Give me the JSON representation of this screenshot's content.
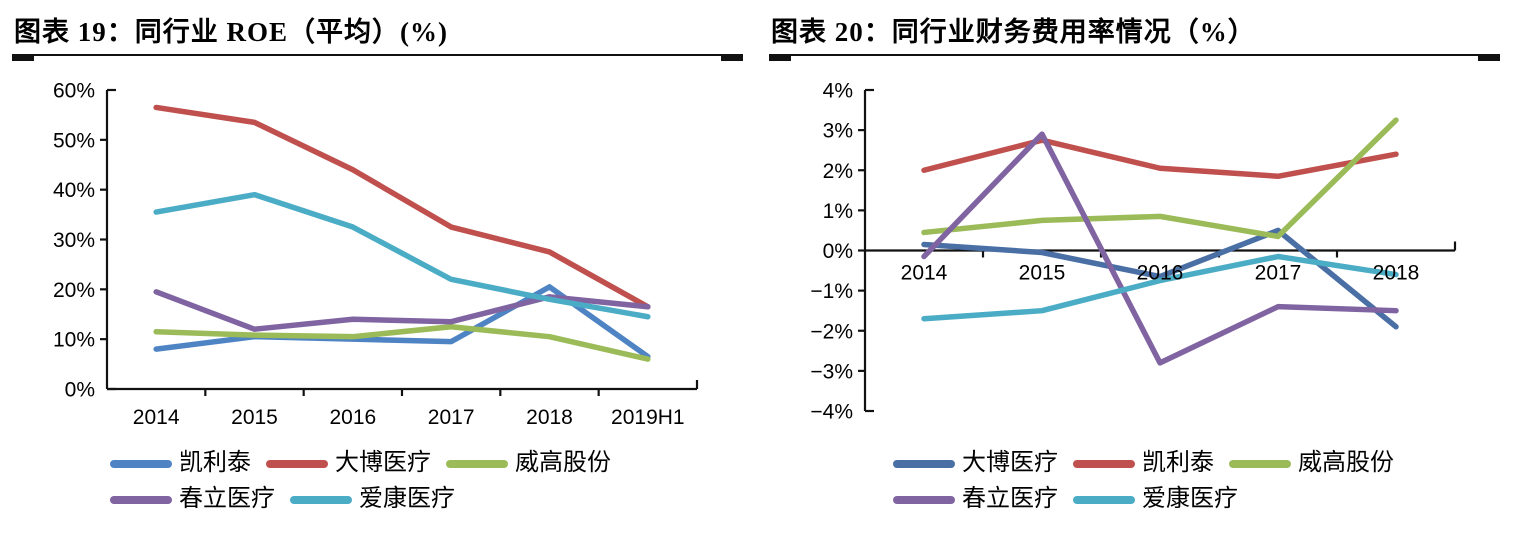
{
  "page": {
    "background": "#ffffff",
    "axis_color": "#111111"
  },
  "chart_data": [
    {
      "id": "roe",
      "type": "line",
      "title": "图表 19：同行业 ROE（平均）(%)",
      "categories": [
        "2014",
        "2015",
        "2016",
        "2017",
        "2018",
        "2019H1"
      ],
      "xlabel": "",
      "ylabel": "",
      "y_axis": {
        "min": 0,
        "max": 60,
        "tick_step": 10,
        "tick_labels": [
          "0%",
          "10%",
          "20%",
          "30%",
          "40%",
          "50%",
          "60%"
        ]
      },
      "grid": false,
      "legend_position": "bottom",
      "legend_rows": [
        [
          0,
          1,
          2
        ],
        [
          3,
          4
        ]
      ],
      "series": [
        {
          "name": "凯利泰",
          "color": "#4f84c4",
          "values": [
            8,
            10.5,
            10,
            9.5,
            20.5,
            6.5
          ]
        },
        {
          "name": "大博医疗",
          "color": "#c0504d",
          "values": [
            56.5,
            53.5,
            44,
            32.5,
            27.5,
            16.5
          ]
        },
        {
          "name": "威高股份",
          "color": "#9bbb59",
          "values": [
            11.5,
            10.8,
            10.5,
            12.5,
            10.5,
            6
          ]
        },
        {
          "name": "春立医疗",
          "color": "#8064a2",
          "values": [
            19.5,
            12,
            14,
            13.5,
            18.5,
            16.5
          ]
        },
        {
          "name": "爱康医疗",
          "color": "#4bacc6",
          "values": [
            35.5,
            39,
            32.5,
            22,
            18,
            14.5
          ]
        }
      ]
    },
    {
      "id": "finance-expense",
      "type": "line",
      "title": "图表 20：同行业财务费用率情况（%）",
      "categories": [
        "2014",
        "2015",
        "2016",
        "2017",
        "2018"
      ],
      "xlabel": "",
      "ylabel": "",
      "y_axis": {
        "min": -4,
        "max": 4,
        "tick_step": 1,
        "tick_labels": [
          "−4%",
          "−3%",
          "−2%",
          "−1%",
          "0%",
          "1%",
          "2%",
          "3%",
          "4%"
        ]
      },
      "grid": false,
      "legend_position": "bottom",
      "legend_rows": [
        [
          0,
          1,
          2
        ],
        [
          3,
          4
        ]
      ],
      "series": [
        {
          "name": "大博医疗",
          "color": "#4a6fa5",
          "values": [
            0.15,
            -0.05,
            -0.65,
            0.5,
            -1.9
          ]
        },
        {
          "name": "凯利泰",
          "color": "#c0504d",
          "values": [
            2.0,
            2.75,
            2.05,
            1.85,
            2.4
          ]
        },
        {
          "name": "威高股份",
          "color": "#9bbb59",
          "values": [
            0.45,
            0.75,
            0.85,
            0.35,
            3.25
          ]
        },
        {
          "name": "春立医疗",
          "color": "#8064a2",
          "values": [
            -0.15,
            2.9,
            -2.8,
            -1.4,
            -1.5
          ]
        },
        {
          "name": "爱康医疗",
          "color": "#4bacc6",
          "values": [
            -1.7,
            -1.5,
            -0.75,
            -0.15,
            -0.6
          ]
        }
      ]
    }
  ]
}
